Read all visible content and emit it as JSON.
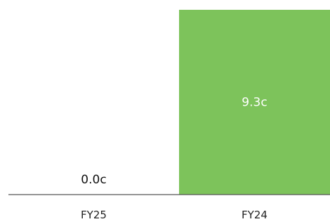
{
  "chart_data": {
    "type": "bar",
    "categories": [
      "FY25",
      "FY24"
    ],
    "values": [
      0.0,
      9.3
    ],
    "data_labels": [
      "0.0c",
      "9.3c"
    ],
    "ylim": [
      0,
      9.3
    ],
    "grid": false,
    "colors": {
      "bar": "#7dc35b",
      "label_inside": "#ffffff",
      "label_outside": "#111111",
      "axis": "#555555",
      "tick": "#222222"
    }
  }
}
